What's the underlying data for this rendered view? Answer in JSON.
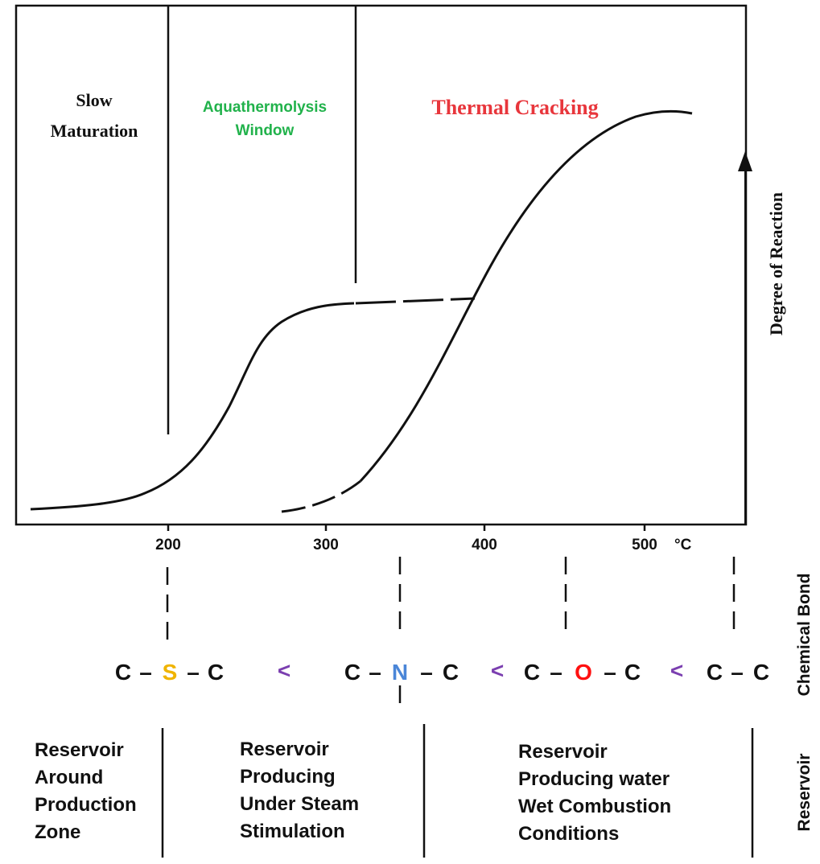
{
  "regions": {
    "slow_maturation": [
      "Slow",
      "Maturation"
    ],
    "aquathermolysis": [
      "Aquathermolysis",
      "Window"
    ],
    "thermal_cracking": "Thermal Cracking"
  },
  "axes": {
    "y_label": "Degree of Reaction",
    "x_ticks": [
      "200",
      "300",
      "400",
      "500"
    ],
    "x_unit": "°C"
  },
  "chemical_bond": {
    "label": "Chemical Bond",
    "bonds": [
      {
        "left": "C",
        "dash1": "–",
        "mid": "S",
        "dash2": "–",
        "right": "C"
      },
      {
        "left": "C",
        "dash1": "–",
        "mid": "N",
        "dash2": "–",
        "right": "C"
      },
      {
        "left": "C",
        "dash1": "–",
        "mid": "O",
        "dash2": "–",
        "right": "C"
      },
      {
        "left": "C",
        "dash1": "–",
        "mid": "",
        "dash2": "",
        "right": "C"
      }
    ],
    "separator": "<"
  },
  "reservoir": {
    "label": "Reservoir",
    "conditions": [
      [
        "Reservoir",
        "Around",
        "Production",
        "Zone"
      ],
      [
        "Reservoir",
        "Producing",
        "Under Steam",
        "Stimulation"
      ],
      [
        "Reservoir",
        "Producing water",
        "Wet Combustion",
        "Conditions"
      ]
    ]
  },
  "colors": {
    "sulfur": "#f0b400",
    "nitrogen": "#4a86d8",
    "oxygen": "#ff1010",
    "separator": "#7b3fb0",
    "aquathermolysis": "#21b24b",
    "thermal_cracking": "#e8363c",
    "ink": "#111111"
  }
}
